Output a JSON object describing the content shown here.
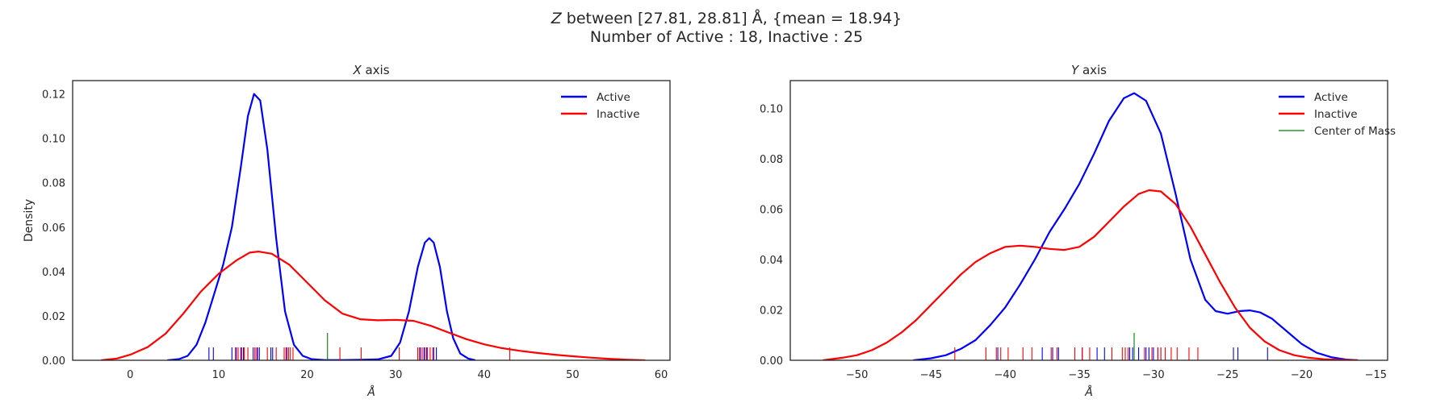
{
  "suptitle": {
    "line1_prefix": "Z",
    "line1_rest": " between [27.81, 28.81] Å, {mean = 18.94}",
    "line2": "Number of Active : 18, Inactive : 25"
  },
  "colors": {
    "active": "#0000ff",
    "inactive": "#ff0000",
    "center": "#008000",
    "frame": "#262626"
  },
  "chart_data": [
    {
      "type": "line",
      "title_var": "X",
      "title_rest": " axis",
      "xlabel": "Å",
      "ylabel": "Density",
      "xlim": [
        -6.5,
        61
      ],
      "ylim": [
        0,
        0.126
      ],
      "xticks": [
        0,
        10,
        20,
        30,
        40,
        50,
        60
      ],
      "yticks": [
        0.0,
        0.02,
        0.04,
        0.06,
        0.08,
        0.1,
        0.12
      ],
      "ytick_labels": [
        "0.00",
        "0.02",
        "0.04",
        "0.06",
        "0.08",
        "0.10",
        "0.12"
      ],
      "legend": {
        "placement": "upper right",
        "entries": [
          {
            "name": "Active",
            "series": "active"
          },
          {
            "name": "Inactive",
            "series": "inactive"
          }
        ]
      },
      "series": [
        {
          "name": "Active",
          "color": "active",
          "kind": "kde",
          "points": [
            [
              4.2,
              0
            ],
            [
              5.5,
              0.0005
            ],
            [
              6.5,
              0.002
            ],
            [
              7.5,
              0.007
            ],
            [
              8.5,
              0.017
            ],
            [
              9.5,
              0.03
            ],
            [
              10.5,
              0.043
            ],
            [
              11.5,
              0.06
            ],
            [
              12.5,
              0.087
            ],
            [
              13.3,
              0.11
            ],
            [
              14,
              0.12
            ],
            [
              14.7,
              0.117
            ],
            [
              15.5,
              0.095
            ],
            [
              16.5,
              0.055
            ],
            [
              17.5,
              0.022
            ],
            [
              18.5,
              0.007
            ],
            [
              19.5,
              0.002
            ],
            [
              20.5,
              0.0005
            ],
            [
              22,
              0.0001
            ],
            [
              24,
              0.0001
            ],
            [
              26,
              0.0002
            ],
            [
              28,
              0.0004
            ],
            [
              29.5,
              0.002
            ],
            [
              30.5,
              0.008
            ],
            [
              31.5,
              0.022
            ],
            [
              32.5,
              0.042
            ],
            [
              33.3,
              0.053
            ],
            [
              33.8,
              0.055
            ],
            [
              34.3,
              0.053
            ],
            [
              35,
              0.042
            ],
            [
              35.8,
              0.022
            ],
            [
              36.5,
              0.01
            ],
            [
              37.3,
              0.003
            ],
            [
              38.2,
              0.0008
            ],
            [
              39,
              0
            ]
          ]
        },
        {
          "name": "Inactive",
          "color": "inactive",
          "kind": "kde",
          "points": [
            [
              -3.3,
              0
            ],
            [
              -1.5,
              0.0008
            ],
            [
              0,
              0.0025
            ],
            [
              2,
              0.006
            ],
            [
              4,
              0.012
            ],
            [
              6,
              0.021
            ],
            [
              8,
              0.031
            ],
            [
              10,
              0.039
            ],
            [
              12,
              0.045
            ],
            [
              13.5,
              0.0485
            ],
            [
              14.5,
              0.049
            ],
            [
              16,
              0.048
            ],
            [
              18,
              0.043
            ],
            [
              20,
              0.035
            ],
            [
              22,
              0.027
            ],
            [
              24,
              0.021
            ],
            [
              26,
              0.0185
            ],
            [
              28,
              0.018
            ],
            [
              30,
              0.0182
            ],
            [
              32,
              0.0178
            ],
            [
              34,
              0.0155
            ],
            [
              36,
              0.0125
            ],
            [
              38,
              0.0095
            ],
            [
              40,
              0.0072
            ],
            [
              42,
              0.0055
            ],
            [
              44,
              0.0043
            ],
            [
              46,
              0.0033
            ],
            [
              48,
              0.0025
            ],
            [
              50,
              0.0018
            ],
            [
              52,
              0.0012
            ],
            [
              54,
              0.0007
            ],
            [
              56,
              0.0003
            ],
            [
              58.2,
              0
            ]
          ]
        }
      ],
      "rug": {
        "active": [
          8.9,
          9.4,
          11.5,
          12.0,
          12.5,
          12.8,
          13.9,
          14.1,
          14.4,
          14.6,
          15.9,
          16.1,
          17.7,
          32.8,
          33.2,
          33.5,
          34.3,
          34.6
        ],
        "inactive": [
          11.9,
          12.2,
          12.6,
          12.9,
          13.3,
          14.1,
          14.3,
          15.5,
          16.5,
          17.4,
          17.6,
          17.9,
          18.1,
          18.4,
          23.7,
          26.1,
          30.4,
          32.5,
          32.7,
          33.0,
          33.3,
          33.6,
          33.9,
          34.2,
          42.9
        ],
        "center": [
          22.3
        ]
      }
    },
    {
      "type": "line",
      "title_var": "Y",
      "title_rest": " axis",
      "xlabel": "Å",
      "ylabel": "",
      "xlim": [
        -54.5,
        -14.2
      ],
      "ylim": [
        0,
        0.111
      ],
      "xticks": [
        -50,
        -45,
        -40,
        -35,
        -30,
        -25,
        -20,
        -15
      ],
      "xtick_labels": [
        "−50",
        "−45",
        "−40",
        "−35",
        "−30",
        "−25",
        "−20",
        "−15"
      ],
      "yticks": [
        0.0,
        0.02,
        0.04,
        0.06,
        0.08,
        0.1
      ],
      "ytick_labels": [
        "0.00",
        "0.02",
        "0.04",
        "0.06",
        "0.08",
        "0.10"
      ],
      "legend": {
        "placement": "upper right",
        "entries": [
          {
            "name": "Active",
            "series": "active"
          },
          {
            "name": "Inactive",
            "series": "inactive"
          },
          {
            "name": "Center of Mass",
            "series": "center"
          }
        ]
      },
      "series": [
        {
          "name": "Active",
          "color": "active",
          "kind": "kde",
          "points": [
            [
              -46.2,
              0
            ],
            [
              -45,
              0.0008
            ],
            [
              -44,
              0.002
            ],
            [
              -43,
              0.0045
            ],
            [
              -42,
              0.008
            ],
            [
              -41,
              0.014
            ],
            [
              -40,
              0.021
            ],
            [
              -39,
              0.03
            ],
            [
              -38,
              0.04
            ],
            [
              -37,
              0.051
            ],
            [
              -36,
              0.06
            ],
            [
              -35,
              0.07
            ],
            [
              -34,
              0.082
            ],
            [
              -33,
              0.095
            ],
            [
              -32,
              0.104
            ],
            [
              -31.3,
              0.106
            ],
            [
              -30.5,
              0.103
            ],
            [
              -29.5,
              0.09
            ],
            [
              -28.5,
              0.066
            ],
            [
              -27.5,
              0.04
            ],
            [
              -26.5,
              0.024
            ],
            [
              -25.8,
              0.0195
            ],
            [
              -25,
              0.0185
            ],
            [
              -24.2,
              0.0195
            ],
            [
              -23.5,
              0.0198
            ],
            [
              -22.8,
              0.019
            ],
            [
              -22,
              0.0165
            ],
            [
              -21,
              0.0115
            ],
            [
              -20,
              0.0065
            ],
            [
              -19,
              0.003
            ],
            [
              -18,
              0.0012
            ],
            [
              -17,
              0.0003
            ],
            [
              -16.2,
              0
            ]
          ]
        },
        {
          "name": "Inactive",
          "color": "inactive",
          "kind": "kde",
          "points": [
            [
              -52.3,
              0
            ],
            [
              -51,
              0.001
            ],
            [
              -50,
              0.002
            ],
            [
              -49,
              0.004
            ],
            [
              -48,
              0.007
            ],
            [
              -47,
              0.011
            ],
            [
              -46,
              0.016
            ],
            [
              -45,
              0.022
            ],
            [
              -44,
              0.028
            ],
            [
              -43,
              0.034
            ],
            [
              -42,
              0.039
            ],
            [
              -41,
              0.0425
            ],
            [
              -40,
              0.045
            ],
            [
              -39,
              0.0455
            ],
            [
              -38,
              0.045
            ],
            [
              -37,
              0.0442
            ],
            [
              -36,
              0.0438
            ],
            [
              -35,
              0.045
            ],
            [
              -34,
              0.049
            ],
            [
              -33,
              0.055
            ],
            [
              -32,
              0.061
            ],
            [
              -31,
              0.066
            ],
            [
              -30.3,
              0.0675
            ],
            [
              -29.5,
              0.067
            ],
            [
              -28.5,
              0.062
            ],
            [
              -27.5,
              0.053
            ],
            [
              -26.5,
              0.042
            ],
            [
              -25.5,
              0.031
            ],
            [
              -24.5,
              0.021
            ],
            [
              -23.5,
              0.013
            ],
            [
              -22.5,
              0.0075
            ],
            [
              -21.5,
              0.004
            ],
            [
              -20.5,
              0.002
            ],
            [
              -19.5,
              0.001
            ],
            [
              -18.5,
              0.0004
            ],
            [
              -17.5,
              0.0002
            ],
            [
              -16.2,
              0
            ]
          ]
        }
      ],
      "rug": {
        "active": [
          -40.5,
          -37.5,
          -36.8,
          -36.4,
          -34.8,
          -33.8,
          -33.3,
          -31.6,
          -31.4,
          -31.0,
          -30.5,
          -30.3,
          -30.0,
          -29.7,
          -29.5,
          -24.6,
          -24.3,
          -22.3
        ],
        "inactive": [
          -43.4,
          -41.3,
          -40.6,
          -40.3,
          -39.8,
          -38.8,
          -38.2,
          -36.9,
          -36.5,
          -35.3,
          -34.8,
          -34.3,
          -32.8,
          -32.1,
          -31.9,
          -31.7,
          -30.6,
          -30.1,
          -29.7,
          -29.5,
          -29.2,
          -28.8,
          -28.4,
          -27.6,
          -27.0
        ],
        "center": [
          -31.3
        ]
      }
    }
  ]
}
